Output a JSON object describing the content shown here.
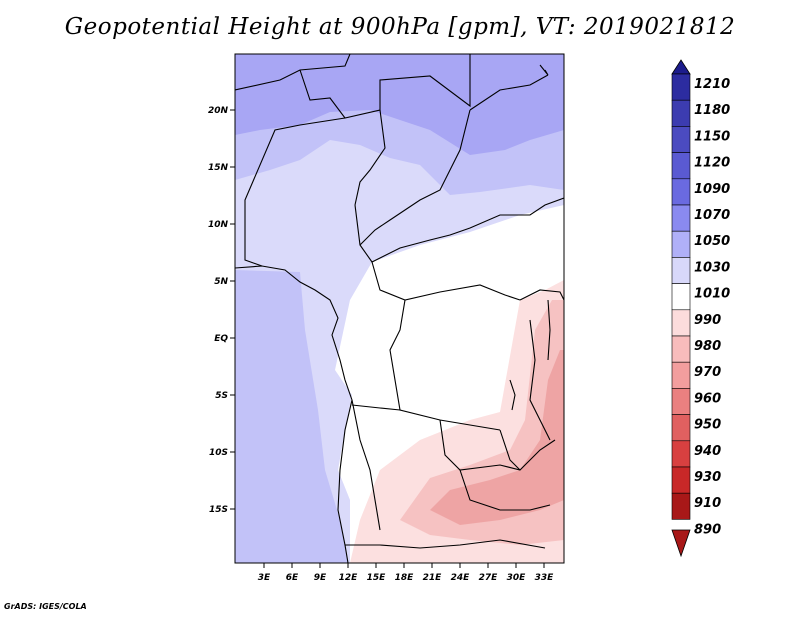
{
  "title": "Geopotential Height at 900hPa [gpm], VT: 2019021812",
  "credit": "GrADS: IGES/COLA",
  "map": {
    "lat_labels": [
      "20N",
      "15N",
      "10N",
      "5N",
      "EQ",
      "5S",
      "10S",
      "15S"
    ],
    "lon_labels": [
      "3E",
      "6E",
      "9E",
      "12E",
      "15E",
      "18E",
      "21E",
      "24E",
      "27E",
      "30E",
      "33E"
    ]
  },
  "colorbar": {
    "levels": [
      "1210",
      "1180",
      "1150",
      "1120",
      "1090",
      "1070",
      "1050",
      "1030",
      "1010",
      "990",
      "980",
      "970",
      "960",
      "950",
      "940",
      "930",
      "910",
      "890"
    ],
    "colors": [
      "#1c1c8c",
      "#2c2ca0",
      "#3c3cb0",
      "#4b4bc0",
      "#5a5ad2",
      "#6a6ae0",
      "#8a8af0",
      "#b0b0f8",
      "#d8d8fa",
      "#ffffff",
      "#fcdcdc",
      "#f8bcbc",
      "#f29e9e",
      "#ea8080",
      "#e06060",
      "#d84040",
      "#c82828",
      "#a81818"
    ]
  },
  "colors": {
    "high_band": "#a8a6f4",
    "mid_band": "#c2c2f8",
    "low_band": "#dadafa",
    "neutral": "#ffffff",
    "warm_light": "#fce0e0",
    "warm_mid": "#f6c2c2",
    "warm_dark": "#eea4a4"
  }
}
